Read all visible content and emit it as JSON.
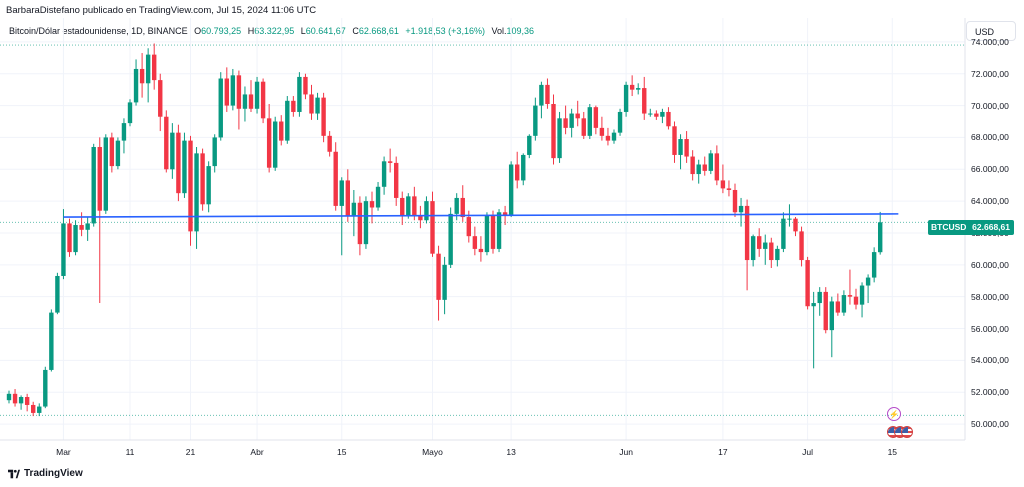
{
  "header": {
    "attribution": "BarbaraDistefano publicado en TradingView.com, Jul 15, 2024 11:06 UTC"
  },
  "legend": {
    "symbol": "Bitcoin/Dólar estadounidense, 1D, BINANCE",
    "open_key": "O",
    "open": "60.793,25",
    "high_key": "H",
    "high": "63.322,95",
    "low_key": "L",
    "low": "60.641,67",
    "close_key": "C",
    "close": "62.668,61",
    "change": "+1.918,53 (+3,16%)",
    "vol_key": "Vol.",
    "vol": "109,36"
  },
  "currency_button": "USD",
  "price_tag": {
    "symbol": "BTCUSD",
    "value": "62.668,61"
  },
  "footer": {
    "brand": "TradingView"
  },
  "colors": {
    "up": "#089981",
    "down": "#f23645",
    "trendline": "#2962ff",
    "grid": "#f0f3fa",
    "accent": "#089981"
  },
  "icons": {
    "event": "lightning-icon",
    "flags": "us-flag-icon"
  },
  "chart_data": {
    "type": "candlestick",
    "title": "Bitcoin/Dólar estadounidense, 1D, BINANCE",
    "xlabel": "",
    "ylabel": "",
    "ylim": [
      49000,
      75500
    ],
    "y_ticks": [
      {
        "value": 74000,
        "label": "74.000,00"
      },
      {
        "value": 72000,
        "label": "72.000,00"
      },
      {
        "value": 70000,
        "label": "70.000,00"
      },
      {
        "value": 68000,
        "label": "68.000,00"
      },
      {
        "value": 66000,
        "label": "66.000,00"
      },
      {
        "value": 64000,
        "label": "64.000,00"
      },
      {
        "value": 62000,
        "label": "62.000,00"
      },
      {
        "value": 60000,
        "label": "60.000,00"
      },
      {
        "value": 58000,
        "label": "58.000,00"
      },
      {
        "value": 56000,
        "label": "56.000,00"
      },
      {
        "value": 54000,
        "label": "54.000,00"
      },
      {
        "value": 52000,
        "label": "52.000,00"
      },
      {
        "value": 50000,
        "label": "50.000,00"
      }
    ],
    "x_ticks": [
      {
        "index": 9,
        "label": "Mar"
      },
      {
        "index": 20,
        "label": "11"
      },
      {
        "index": 30,
        "label": "21"
      },
      {
        "index": 41,
        "label": "Abr"
      },
      {
        "index": 55,
        "label": "15"
      },
      {
        "index": 70,
        "label": "Mayo"
      },
      {
        "index": 83,
        "label": "13"
      },
      {
        "index": 102,
        "label": "Jun"
      },
      {
        "index": 118,
        "label": "17"
      },
      {
        "index": 132,
        "label": "Jul"
      },
      {
        "index": 146,
        "label": "15"
      }
    ],
    "horizontal_lines": [
      {
        "value": 73800,
        "style": "dotted"
      },
      {
        "value": 62670,
        "style": "dotted"
      },
      {
        "value": 50550,
        "style": "dotted"
      }
    ],
    "trendline": {
      "start_index": 9,
      "start_value": 63000,
      "end_index": 147,
      "end_value": 63200
    },
    "candles": [
      [
        51500,
        52100,
        51300,
        51900
      ],
      [
        51900,
        52200,
        51100,
        51300
      ],
      [
        51300,
        51800,
        50900,
        51700
      ],
      [
        51700,
        51900,
        50800,
        51200
      ],
      [
        51200,
        51400,
        50500,
        50700
      ],
      [
        50700,
        51300,
        50500,
        51100
      ],
      [
        51100,
        53600,
        51000,
        53400
      ],
      [
        53400,
        57200,
        53300,
        57000
      ],
      [
        57000,
        59500,
        56900,
        59300
      ],
      [
        59300,
        63500,
        59100,
        62600
      ],
      [
        62600,
        62900,
        60500,
        60800
      ],
      [
        60800,
        62800,
        60600,
        62500
      ],
      [
        62500,
        63300,
        61800,
        62200
      ],
      [
        62200,
        63000,
        61500,
        62600
      ],
      [
        62600,
        67600,
        62400,
        67400
      ],
      [
        67400,
        68000,
        57600,
        63400
      ],
      [
        63400,
        68200,
        63200,
        68000
      ],
      [
        68000,
        68300,
        65800,
        66200
      ],
      [
        66200,
        68000,
        66000,
        67800
      ],
      [
        67800,
        69200,
        67000,
        68900
      ],
      [
        68900,
        70400,
        68700,
        70200
      ],
      [
        70200,
        72900,
        70000,
        72300
      ],
      [
        72300,
        73300,
        70500,
        71400
      ],
      [
        71400,
        73600,
        70200,
        73200
      ],
      [
        73200,
        73900,
        71000,
        71600
      ],
      [
        71600,
        72000,
        68400,
        69300
      ],
      [
        69300,
        69700,
        65800,
        66000
      ],
      [
        66000,
        68900,
        65400,
        68300
      ],
      [
        68300,
        68800,
        64000,
        64500
      ],
      [
        64500,
        68300,
        64200,
        67800
      ],
      [
        67800,
        68100,
        61200,
        62100
      ],
      [
        62100,
        67400,
        61000,
        67000
      ],
      [
        67000,
        67300,
        63400,
        63800
      ],
      [
        63800,
        66500,
        63300,
        66200
      ],
      [
        66200,
        68200,
        65800,
        68000
      ],
      [
        68000,
        72100,
        67800,
        71700
      ],
      [
        71700,
        72400,
        69600,
        70000
      ],
      [
        70000,
        72300,
        69700,
        71900
      ],
      [
        71900,
        72200,
        68500,
        69800
      ],
      [
        69800,
        71200,
        69000,
        70700
      ],
      [
        70700,
        71600,
        69600,
        69800
      ],
      [
        69800,
        71800,
        69500,
        71500
      ],
      [
        71500,
        71700,
        68900,
        69200
      ],
      [
        69200,
        70100,
        65800,
        66100
      ],
      [
        66100,
        69300,
        65900,
        69000
      ],
      [
        69000,
        69400,
        67500,
        67800
      ],
      [
        67800,
        70600,
        67600,
        70300
      ],
      [
        70300,
        70600,
        69300,
        69600
      ],
      [
        69600,
        72100,
        69300,
        71800
      ],
      [
        71800,
        72000,
        70400,
        70700
      ],
      [
        70700,
        71300,
        69100,
        69500
      ],
      [
        69500,
        70800,
        69100,
        70500
      ],
      [
        70500,
        70800,
        67700,
        68100
      ],
      [
        68100,
        68400,
        66800,
        67100
      ],
      [
        67100,
        67700,
        63400,
        63700
      ],
      [
        63700,
        65500,
        60600,
        65300
      ],
      [
        65300,
        66000,
        62700,
        63100
      ],
      [
        63100,
        64700,
        61800,
        63900
      ],
      [
        63900,
        64300,
        60600,
        61300
      ],
      [
        61300,
        64300,
        61000,
        64000
      ],
      [
        64000,
        64600,
        62600,
        63600
      ],
      [
        63600,
        65200,
        63400,
        64900
      ],
      [
        64900,
        66800,
        64400,
        66500
      ],
      [
        66500,
        67300,
        65800,
        66400
      ],
      [
        66400,
        66800,
        63700,
        64200
      ],
      [
        64200,
        64600,
        62500,
        63100
      ],
      [
        63100,
        64500,
        62900,
        64300
      ],
      [
        64300,
        64900,
        62800,
        63100
      ],
      [
        63100,
        63700,
        62300,
        62800
      ],
      [
        62800,
        64300,
        62600,
        64000
      ],
      [
        64000,
        64600,
        60500,
        60700
      ],
      [
        60700,
        61200,
        56500,
        57800
      ],
      [
        57800,
        60500,
        56900,
        60000
      ],
      [
        60000,
        63600,
        59800,
        63200
      ],
      [
        63200,
        64500,
        62800,
        64200
      ],
      [
        64200,
        65000,
        62700,
        63000
      ],
      [
        63000,
        63400,
        61400,
        61800
      ],
      [
        61800,
        62400,
        60600,
        61000
      ],
      [
        61000,
        61800,
        60200,
        60800
      ],
      [
        60800,
        63300,
        60600,
        63100
      ],
      [
        63100,
        63400,
        60700,
        61000
      ],
      [
        61000,
        63500,
        60800,
        63300
      ],
      [
        63300,
        63700,
        62500,
        63100
      ],
      [
        63100,
        66500,
        63000,
        66300
      ],
      [
        66300,
        67100,
        64800,
        65300
      ],
      [
        65300,
        67000,
        65000,
        66900
      ],
      [
        66900,
        68200,
        66700,
        68100
      ],
      [
        68100,
        70500,
        67800,
        70000
      ],
      [
        70000,
        71500,
        69200,
        71300
      ],
      [
        71300,
        71700,
        69800,
        70100
      ],
      [
        70100,
        70700,
        66300,
        66700
      ],
      [
        66700,
        69600,
        66400,
        69200
      ],
      [
        69200,
        70000,
        68200,
        68600
      ],
      [
        68600,
        69800,
        68000,
        69500
      ],
      [
        69500,
        70300,
        68700,
        69200
      ],
      [
        69200,
        69600,
        67900,
        68100
      ],
      [
        68100,
        70100,
        67900,
        69900
      ],
      [
        69900,
        70000,
        68200,
        68600
      ],
      [
        68600,
        69300,
        67800,
        68100
      ],
      [
        68100,
        68600,
        67500,
        67800
      ],
      [
        67800,
        68500,
        67600,
        68300
      ],
      [
        68300,
        69800,
        68100,
        69600
      ],
      [
        69600,
        71500,
        69300,
        71300
      ],
      [
        71300,
        71900,
        70600,
        71000
      ],
      [
        71000,
        71400,
        70700,
        71100
      ],
      [
        71100,
        71800,
        69100,
        69500
      ],
      [
        69500,
        69800,
        69300,
        69500
      ],
      [
        69500,
        69700,
        69100,
        69300
      ],
      [
        69300,
        69800,
        68900,
        69600
      ],
      [
        69600,
        69900,
        68500,
        68700
      ],
      [
        68700,
        69000,
        66400,
        66900
      ],
      [
        66900,
        68200,
        66000,
        67900
      ],
      [
        67900,
        68400,
        66400,
        66800
      ],
      [
        66800,
        67200,
        65300,
        65700
      ],
      [
        65700,
        66600,
        65100,
        66300
      ],
      [
        66300,
        66800,
        65600,
        65900
      ],
      [
        65900,
        67200,
        65700,
        67000
      ],
      [
        67000,
        67500,
        65000,
        65300
      ],
      [
        65300,
        66300,
        64500,
        64800
      ],
      [
        64800,
        65300,
        64300,
        64700
      ],
      [
        64700,
        65100,
        63000,
        63300
      ],
      [
        63300,
        64200,
        62400,
        63700
      ],
      [
        63700,
        64100,
        58400,
        60300
      ],
      [
        60300,
        61900,
        59900,
        61800
      ],
      [
        61800,
        62300,
        60500,
        61000
      ],
      [
        61000,
        61900,
        60000,
        61400
      ],
      [
        61400,
        61700,
        59800,
        60300
      ],
      [
        60300,
        61200,
        59900,
        61000
      ],
      [
        61000,
        63300,
        60800,
        62900
      ],
      [
        62900,
        63800,
        62400,
        62900
      ],
      [
        62900,
        63000,
        61800,
        62100
      ],
      [
        62100,
        62400,
        59900,
        60300
      ],
      [
        60300,
        60500,
        57200,
        57400
      ],
      [
        57400,
        58300,
        53500,
        57600
      ],
      [
        57600,
        58600,
        56800,
        58300
      ],
      [
        58300,
        58600,
        55700,
        55900
      ],
      [
        55900,
        58000,
        54200,
        57700
      ],
      [
        57700,
        58200,
        56800,
        57000
      ],
      [
        57000,
        58400,
        56800,
        58100
      ],
      [
        58100,
        59700,
        57500,
        58000
      ],
      [
        58000,
        58500,
        57200,
        57500
      ],
      [
        57500,
        58900,
        56700,
        58700
      ],
      [
        58700,
        59400,
        57600,
        59200
      ],
      [
        59200,
        61100,
        58900,
        60800
      ],
      [
        60793.25,
        63322.95,
        60641.67,
        62668.61
      ]
    ]
  }
}
